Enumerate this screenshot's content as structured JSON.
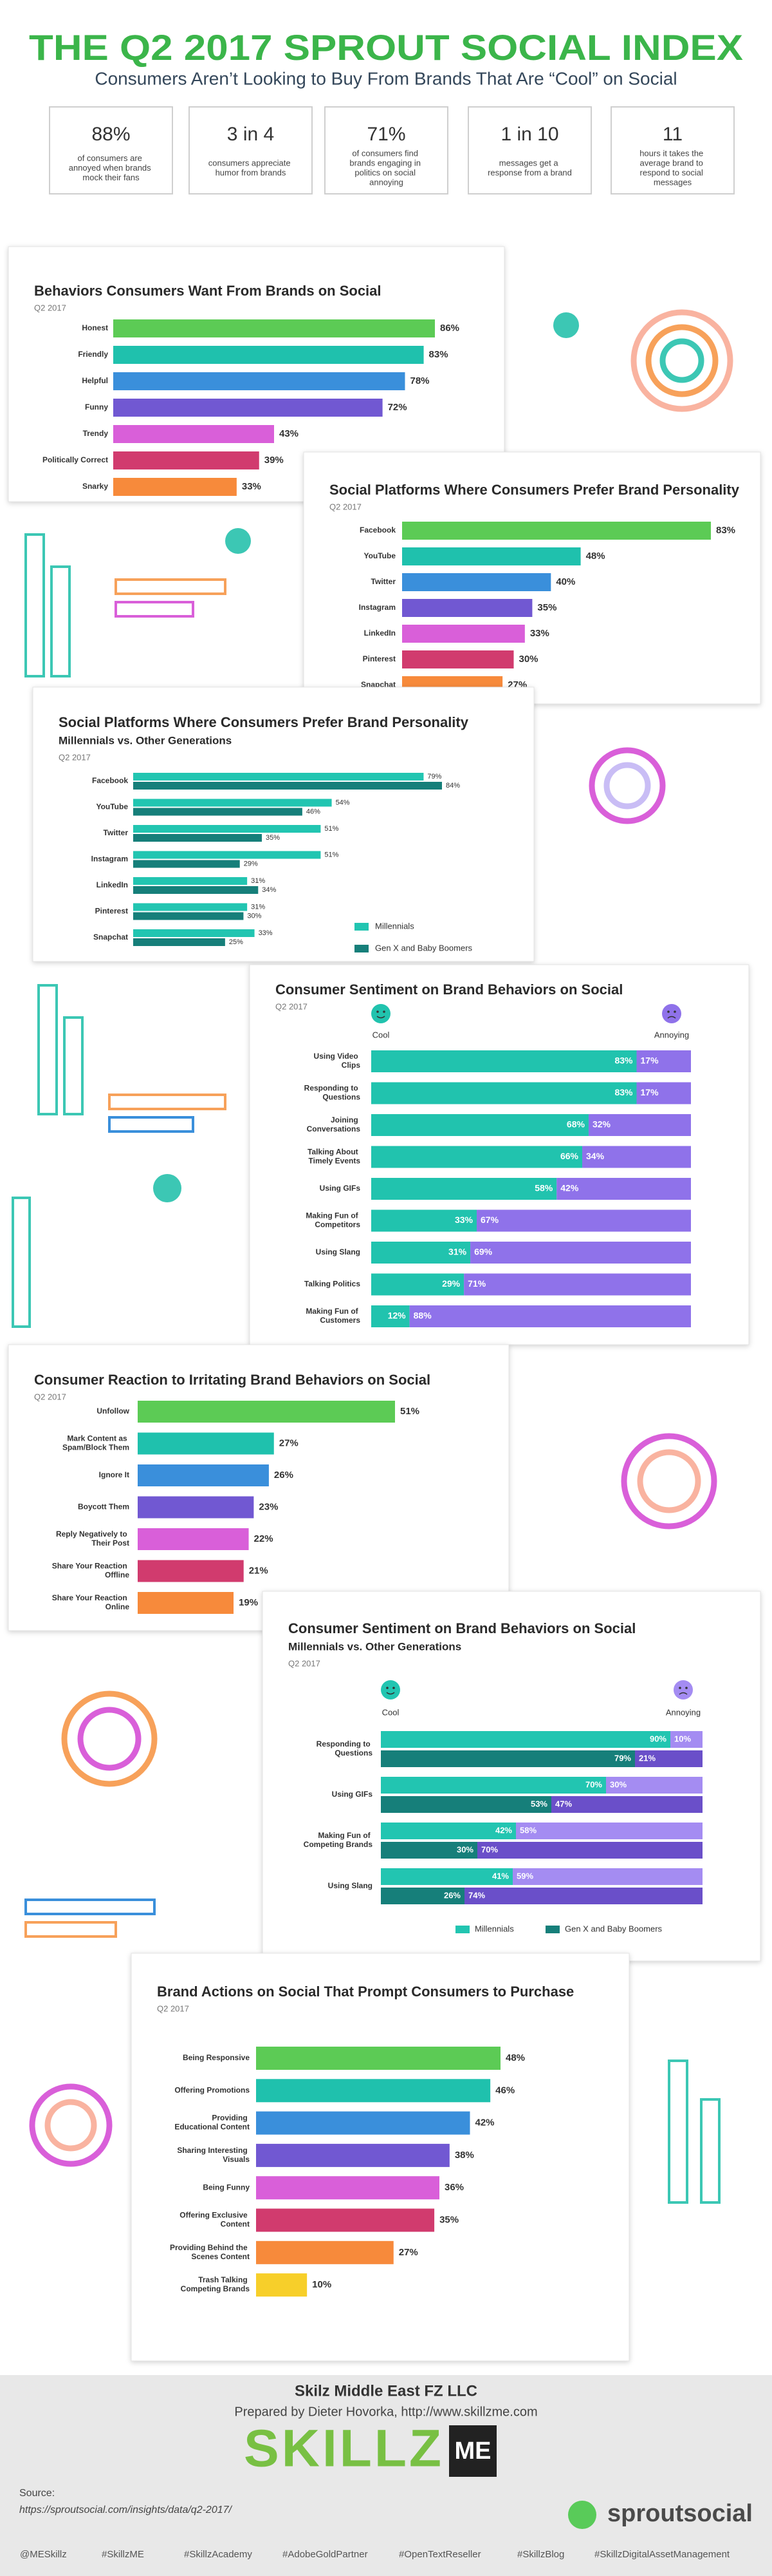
{
  "header": {
    "title": "THE Q2 2017 SPROUT SOCIAL INDEX",
    "subtitle": "Consumers Aren’t Looking to Buy From Brands That Are “Cool” on Social"
  },
  "stats": [
    {
      "value": "88%",
      "text": "of consumers are annoyed when brands mock their fans"
    },
    {
      "value": "3 in 4",
      "text": "consumers appreciate humor from brands"
    },
    {
      "value": "71%",
      "text": "of consumers find brands engaging in politics on social annoying"
    },
    {
      "value": "1 in 10",
      "text": "messages get a response from a brand"
    },
    {
      "value": "11",
      "text": "hours it takes the average brand to respond to social messages"
    }
  ],
  "chart_data": [
    {
      "type": "bar",
      "title": "Behaviors Consumers Want From Brands on Social",
      "date": "Q2 2017",
      "categories": [
        "Honest",
        "Friendly",
        "Helpful",
        "Funny",
        "Trendy",
        "Politically Correct",
        "Snarky"
      ],
      "values": [
        86,
        83,
        78,
        72,
        43,
        39,
        33
      ],
      "value_labels": [
        "86%",
        "83%",
        "78%",
        "72%",
        "43%",
        "39%",
        "33%"
      ],
      "colors": [
        "#5ccb55",
        "#1fc1ad",
        "#3a8fdb",
        "#7158d2",
        "#d95fd9",
        "#d13b6e",
        "#f78a3b"
      ]
    },
    {
      "type": "bar",
      "title": "Social Platforms Where Consumers Prefer Brand Personality",
      "date": "Q2 2017",
      "categories": [
        "Facebook",
        "YouTube",
        "Twitter",
        "Instagram",
        "LinkedIn",
        "Pinterest",
        "Snapchat"
      ],
      "values": [
        83,
        48,
        40,
        35,
        33,
        30,
        27
      ],
      "value_labels": [
        "83%",
        "48%",
        "40%",
        "35%",
        "33%",
        "30%",
        "27%"
      ],
      "colors": [
        "#5ccb55",
        "#1fc1ad",
        "#3a8fdb",
        "#7158d2",
        "#d95fd9",
        "#d13b6e",
        "#f78a3b"
      ]
    },
    {
      "type": "grouped_bar",
      "title": "Social Platforms Where Consumers Prefer Brand Personality",
      "subtitle": "Millennials vs. Other Generations",
      "date": "Q2 2017",
      "categories": [
        "Facebook",
        "YouTube",
        "Twitter",
        "Instagram",
        "LinkedIn",
        "Pinterest",
        "Snapchat"
      ],
      "series": [
        {
          "name": "Millennials",
          "color": "#22c5b1",
          "values": [
            79,
            54,
            51,
            51,
            31,
            31,
            33
          ],
          "value_labels": [
            "79%",
            "54%",
            "51%",
            "51%",
            "31%",
            "31%",
            "33%"
          ]
        },
        {
          "name": "Gen X and Baby Boomers",
          "color": "#167f7a",
          "values": [
            84,
            46,
            35,
            29,
            34,
            30,
            25
          ],
          "value_labels": [
            "84%",
            "46%",
            "35%",
            "29%",
            "34%",
            "30%",
            "25%"
          ]
        }
      ]
    },
    {
      "type": "stacked_bar",
      "title": "Consumer Sentiment on Brand Behaviors on Social",
      "date": "Q2 2017",
      "categories": [
        "Using Video Clips",
        "Responding to Questions",
        "Joining Conversations",
        "Talking About Timely Events",
        "Using GIFs",
        "Making Fun of Competitors",
        "Using Slang",
        "Talking Politics",
        "Making Fun of Customers"
      ],
      "series": [
        {
          "name": "Cool",
          "color": "#21c3ae",
          "values": [
            83,
            83,
            68,
            66,
            58,
            33,
            31,
            29,
            12
          ],
          "value_labels": [
            "83%",
            "83%",
            "68%",
            "66%",
            "58%",
            "33%",
            "31%",
            "29%",
            "12%"
          ]
        },
        {
          "name": "Annoying",
          "color": "#8f72ea",
          "values": [
            17,
            17,
            32,
            34,
            42,
            67,
            69,
            71,
            88
          ],
          "value_labels": [
            "17%",
            "17%",
            "32%",
            "34%",
            "42%",
            "67%",
            "69%",
            "71%",
            "88%"
          ]
        }
      ]
    },
    {
      "type": "bar",
      "title": "Consumer Reaction to Irritating Brand Behaviors on Social",
      "date": "Q2 2017",
      "categories": [
        "Unfollow",
        "Mark Content as Spam/Block Them",
        "Ignore It",
        "Boycott Them",
        "Reply Negatively to Their Post",
        "Share Your Reaction Offline",
        "Share Your Reaction Online"
      ],
      "values": [
        51,
        27,
        26,
        23,
        22,
        21,
        19
      ],
      "value_labels": [
        "51%",
        "27%",
        "26%",
        "23%",
        "22%",
        "21%",
        "19%"
      ],
      "colors": [
        "#5ccb55",
        "#1fc1ad",
        "#3a8fdb",
        "#7158d2",
        "#d95fd9",
        "#d13b6e",
        "#f78a3b"
      ]
    },
    {
      "type": "grouped_stacked_bar",
      "title": "Consumer Sentiment on Brand Behaviors on Social",
      "subtitle": "Millennials vs. Other Generations",
      "date": "Q2 2017",
      "sentiments": [
        "Cool",
        "Annoying"
      ],
      "categories": [
        "Responding to Questions",
        "Using GIFs",
        "Making Fun of Competing Brands",
        "Using Slang"
      ],
      "series": [
        {
          "name": "Millennials",
          "colors": [
            "#22c5b1",
            "#a48cf2"
          ],
          "values": [
            [
              90,
              10
            ],
            [
              70,
              30
            ],
            [
              42,
              58
            ],
            [
              41,
              59
            ]
          ],
          "value_labels": [
            [
              "90%",
              "10%"
            ],
            [
              "70%",
              "30%"
            ],
            [
              "42%",
              "58%"
            ],
            [
              "41%",
              "59%"
            ]
          ]
        },
        {
          "name": "Gen X and Baby Boomers",
          "colors": [
            "#167f7a",
            "#6a4fc9"
          ],
          "values": [
            [
              79,
              21
            ],
            [
              53,
              47
            ],
            [
              30,
              70
            ],
            [
              26,
              74
            ]
          ],
          "value_labels": [
            [
              "79%",
              "21%"
            ],
            [
              "53%",
              "47%"
            ],
            [
              "30%",
              "70%"
            ],
            [
              "26%",
              "74%"
            ]
          ]
        }
      ]
    },
    {
      "type": "bar",
      "title": "Brand Actions on Social That Prompt Consumers to Purchase",
      "date": "Q2 2017",
      "categories": [
        "Being Responsive",
        "Offering Promotions",
        "Providing Educational Content",
        "Sharing Interesting Visuals",
        "Being Funny",
        "Offering Exclusive Content",
        "Providing Behind the Scenes Content",
        "Trash Talking Competing Brands"
      ],
      "values": [
        48,
        46,
        42,
        38,
        36,
        35,
        27,
        10
      ],
      "value_labels": [
        "48%",
        "46%",
        "42%",
        "38%",
        "36%",
        "35%",
        "27%",
        "10%"
      ],
      "colors": [
        "#5ccb55",
        "#1fc1ad",
        "#3a8fdb",
        "#7158d2",
        "#d95fd9",
        "#d13b6e",
        "#f78a3b",
        "#f7cf2a"
      ]
    }
  ],
  "footer": {
    "company": "Skilz Middle East FZ LLC",
    "prepared": "Prepared by Dieter Hovorka, http://www.skillzme.com",
    "logo": "SKILLZ",
    "logo_badge": "ME",
    "source_label": "Source:",
    "source_url": "https://sproutsocial.com/insights/data/q2-2017/",
    "brand": "sproutsocial",
    "hashtags": [
      "@MESkillz",
      "#SkillzME",
      "#SkillzAcademy",
      "#AdobeGoldPartner",
      "#OpenTextReseller",
      "#SkillzBlog",
      "#SkillzDigitalAssetManagement"
    ]
  }
}
